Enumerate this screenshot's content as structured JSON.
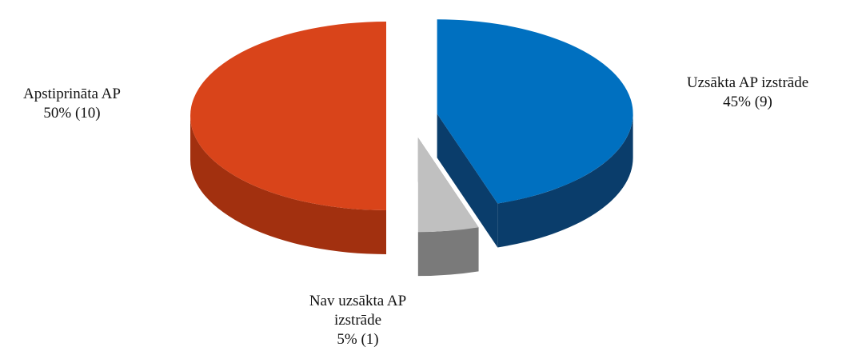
{
  "chart_data": {
    "type": "pie",
    "categories": [
      "Uzsākta AP izstrāde",
      "Nav uzsākta AP izstrāde",
      "Apstiprināta AP"
    ],
    "values": [
      45,
      5,
      50
    ],
    "value_labels": [
      "45% (9)",
      "5% (1)",
      "50% (10)"
    ],
    "colors": [
      "#0070c0",
      "#c0c0c0",
      "#d9441a"
    ],
    "side_colors": [
      "#0a3d6b",
      "#7a7a7a",
      "#a2300f"
    ]
  }
}
